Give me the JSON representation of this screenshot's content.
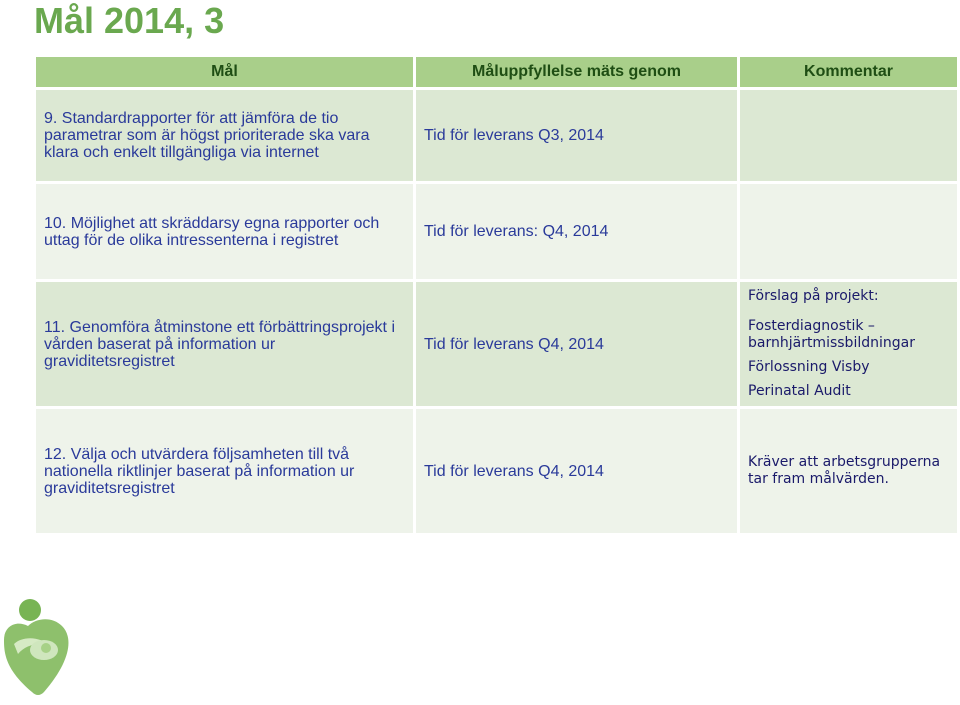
{
  "page": {
    "title": "Mål 2014, 3"
  },
  "table": {
    "headers": [
      "Mål",
      "Måluppfyllelse mäts genom",
      "Kommentar"
    ],
    "rows": [
      {
        "goal": "9. Standardrapporter för att jämföra de tio parametrar som är högst prioriterade ska vara klara och enkelt tillgängliga via internet",
        "measure": "Tid för leverans Q3, 2014",
        "comment": []
      },
      {
        "goal": "10. Möjlighet att skräddarsy egna rapporter och uttag för de olika intressenterna i registret",
        "measure": "Tid för leverans: Q4, 2014",
        "comment": []
      },
      {
        "goal": "11. Genomföra åtminstone ett förbättringsprojekt i vården baserat på information ur graviditetsregistret",
        "measure": "Tid för leverans Q4, 2014",
        "comment": [
          "Förslag på projekt:",
          "Fosterdiagnostik – barnhjärtmissbildningar",
          "Förlossning Visby",
          "Perinatal Audit"
        ]
      },
      {
        "goal": "12. Välja och utvärdera följsamheten till två nationella riktlinjer baserat på information ur graviditetsregistret",
        "measure": "Tid för leverans Q4, 2014",
        "comment": [
          "Kräver att arbetsgrupperna tar fram målvärden."
        ]
      }
    ]
  },
  "colors": {
    "title": "#6aa84f",
    "header_bg": "#a9cf8a",
    "row_bg": "#dce8d3",
    "row_alt_bg": "#eef3ea",
    "text": "#2a3a9a"
  },
  "logo": {
    "icon": "heart-figures-logo-icon"
  }
}
